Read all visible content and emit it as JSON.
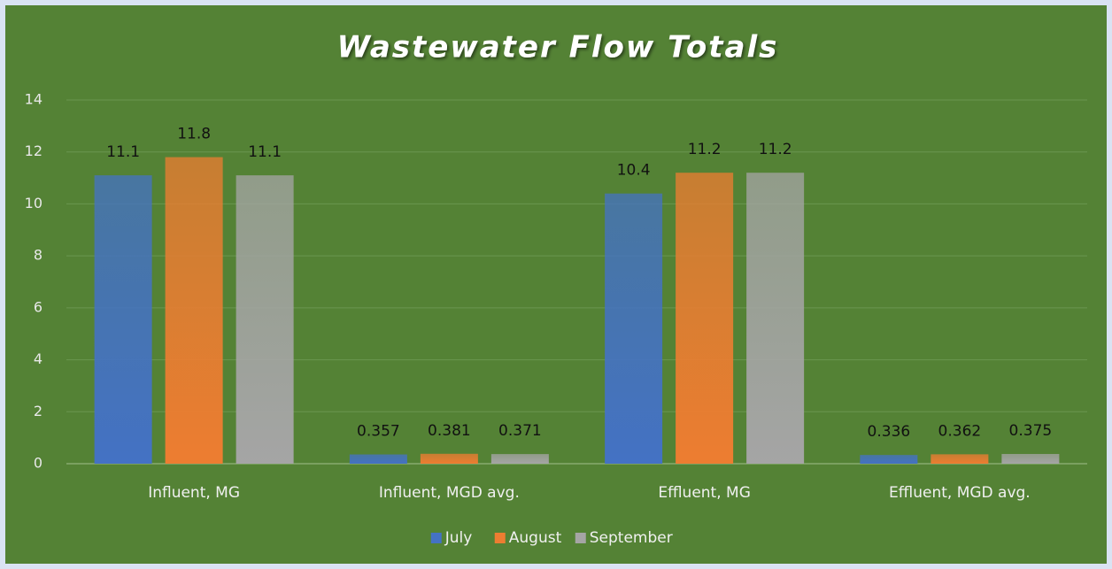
{
  "chart_data": {
    "type": "bar",
    "title": "Wastewater Flow Totals",
    "categories": [
      "Influent, MG",
      "Influent, MGD avg.",
      "Effluent, MG",
      "Effluent, MGD avg."
    ],
    "series": [
      {
        "name": "July",
        "color": "#4472c4",
        "values": [
          11.1,
          0.357,
          10.4,
          0.336
        ]
      },
      {
        "name": "August",
        "color": "#ed7d31",
        "values": [
          11.8,
          0.381,
          11.2,
          0.362
        ]
      },
      {
        "name": "September",
        "color": "#a5a5a5",
        "values": [
          11.1,
          0.371,
          11.2,
          0.375
        ]
      }
    ],
    "ylim": [
      0,
      14
    ],
    "yticks": [
      0,
      2,
      4,
      6,
      8,
      10,
      12,
      14
    ],
    "grid": true,
    "legend": "bottom"
  }
}
